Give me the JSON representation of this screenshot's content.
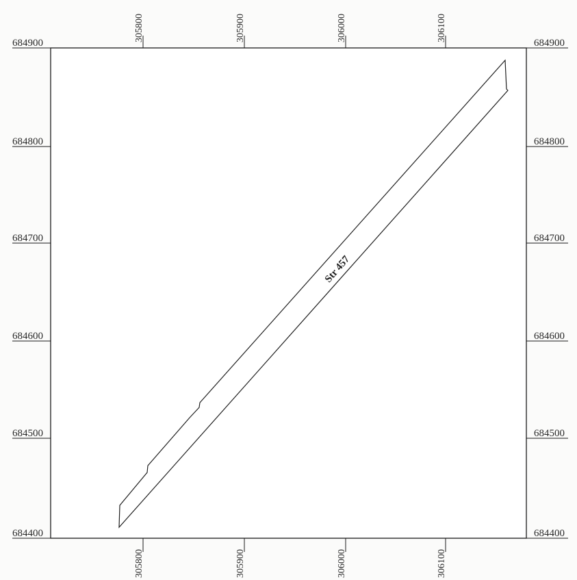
{
  "map": {
    "x_ticks": [
      "305800",
      "305900",
      "306000",
      "306100"
    ],
    "y_ticks": [
      "684900",
      "684800",
      "684700",
      "684600",
      "684500",
      "684400"
    ],
    "parcel_label": "Str 457",
    "colors": {
      "frame": "#1a1a1a",
      "parcel_outline": "#1f1f1f",
      "text": "#2a2a2a",
      "background": "#fbfbfa"
    }
  }
}
